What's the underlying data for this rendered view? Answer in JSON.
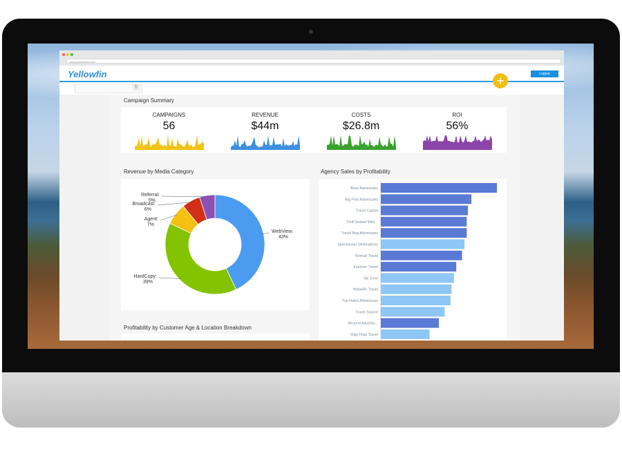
{
  "browser": {
    "address": "www.yellowfinbi.com"
  },
  "header": {
    "logo_text": "Yellowfin",
    "logout_label": "Logout",
    "plus_label": "+"
  },
  "sections": {
    "campaign_summary": "Campaign Summary",
    "revenue_by_media": "Revenue by Media Category",
    "agency_sales": "Agency Sales by Profitability",
    "profitability": "Profitability by Customer Age & Location Breakdown"
  },
  "kpis": [
    {
      "label": "CAMPAIGNS",
      "value": "56",
      "color": "#f2c215"
    },
    {
      "label": "REVENUE",
      "value": "$44m",
      "color": "#3d8ee0"
    },
    {
      "label": "COSTS",
      "value": "$26.8m",
      "color": "#3aa02f"
    },
    {
      "label": "ROI",
      "value": "56%",
      "color": "#8b44a8"
    }
  ],
  "chart_data": [
    {
      "type": "pie",
      "title": "Revenue by Media Category",
      "slices": [
        {
          "name": "WebView",
          "label": "WebView:",
          "pct_label": "43%",
          "value": 43,
          "color": "#4b9cf0"
        },
        {
          "name": "HardCopy",
          "label": "HardCopy:",
          "pct_label": "39%",
          "value": 39,
          "color": "#84c300"
        },
        {
          "name": "Agent",
          "label": "Agent:",
          "pct_label": "7%",
          "value": 7,
          "color": "#f4c011"
        },
        {
          "name": "Broadcast",
          "label": "Broadcast:",
          "pct_label": "6%",
          "value": 6,
          "color": "#d22e18"
        },
        {
          "name": "Referral",
          "label": "Referral:",
          "pct_label": "5%",
          "value": 5,
          "color": "#8c52b3"
        }
      ]
    },
    {
      "type": "bar",
      "orientation": "horizontal",
      "title": "Agency Sales by Profitability",
      "xlim": [
        0,
        100
      ],
      "categories": [
        "Buzz Adventures",
        "Big Foot Adventures",
        "Travel Capital",
        "Thrill Seeker Wint...",
        "Travel Bug Adventures",
        "Spectacular Destinations",
        "Nomad Travel",
        "Explorer Travel",
        "Ski Zone",
        "Yellowfin Travel",
        "Top Notch Adventures",
        "Travel Source",
        "Beyond Adventu...",
        "Viaje Filaz Travel"
      ],
      "values": [
        100,
        78,
        75,
        74,
        74,
        72,
        70,
        65,
        63,
        61,
        60,
        55,
        50,
        42
      ],
      "colors": [
        "#5b7ad6",
        "#5b7ad6",
        "#5b7ad6",
        "#5b7ad6",
        "#5b7ad6",
        "#8ec6f5",
        "#5b7ad6",
        "#5b7ad6",
        "#8ec6f5",
        "#8ec6f5",
        "#8ec6f5",
        "#8ec6f5",
        "#5b7ad6",
        "#8ec6f5"
      ]
    }
  ]
}
